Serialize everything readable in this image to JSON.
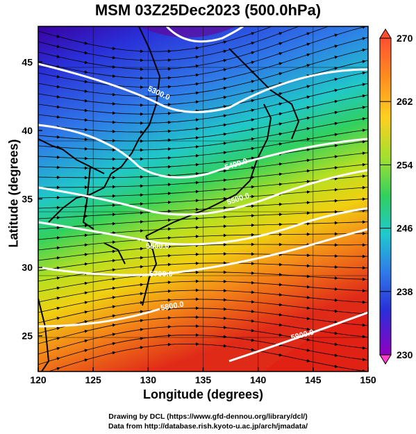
{
  "title": "MSM 03Z25Dec2023 (500.0hPa)",
  "axes": {
    "xlabel": "Longitude (degrees)",
    "ylabel": "Latitude  (degrees)",
    "x_ticks": [
      "120",
      "125",
      "130",
      "135",
      "140",
      "145",
      "150"
    ],
    "y_ticks": [
      "25",
      "30",
      "35",
      "40",
      "45"
    ],
    "x_range": [
      120,
      150
    ],
    "y_range": [
      22.4,
      47.6
    ]
  },
  "colorbar": {
    "ticks": [
      "270",
      "262",
      "254",
      "246",
      "238",
      "230"
    ],
    "range": [
      230,
      270
    ]
  },
  "contours": [
    {
      "label": "5300.0"
    },
    {
      "label": "5400.0"
    },
    {
      "label": "5500.0"
    },
    {
      "label": "5600.0"
    },
    {
      "label": "5700.0"
    },
    {
      "label": "5800.0"
    },
    {
      "label": "5900.0"
    }
  ],
  "credits": {
    "line1": "Drawing by DCL (https://www.gfd-dennou.org/library/dcl/)",
    "line2": "Data from http://database.rish.kyoto-u.ac.jp/arch/jmadata/"
  },
  "colors": {
    "cold": "#2222cc",
    "warm": "#ee3322",
    "contour": "#ffffff"
  }
}
